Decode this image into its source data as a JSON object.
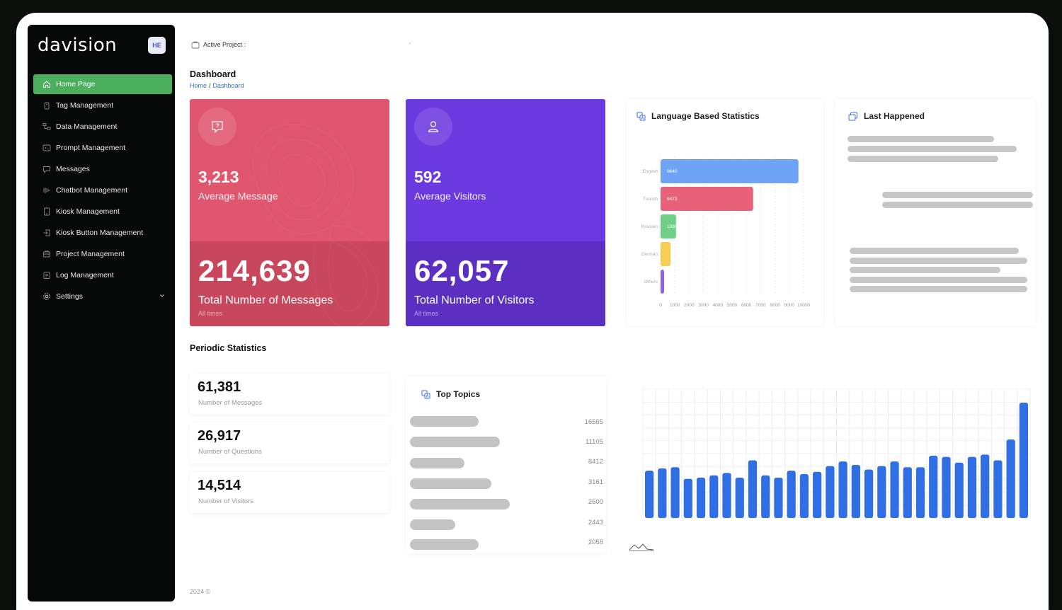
{
  "app": {
    "logo": "davision",
    "avatar": "HE"
  },
  "sidebar": {
    "items": [
      {
        "label": "Home Page",
        "icon": "home-icon",
        "active": true
      },
      {
        "label": "Tag Management",
        "icon": "tag-icon"
      },
      {
        "label": "Data Management",
        "icon": "data-icon"
      },
      {
        "label": "Prompt Management",
        "icon": "prompt-icon"
      },
      {
        "label": "Messages",
        "icon": "messages-icon"
      },
      {
        "label": "Chatbot Management",
        "icon": "chatbot-icon"
      },
      {
        "label": "Kiosk Management",
        "icon": "kiosk-icon"
      },
      {
        "label": "Kiosk Button Management",
        "icon": "kiosk-button-icon"
      },
      {
        "label": "Project Management",
        "icon": "project-icon"
      },
      {
        "label": "Log Management",
        "icon": "log-icon"
      },
      {
        "label": "Settings",
        "icon": "gear-icon",
        "has_chevron": true
      }
    ]
  },
  "header": {
    "active_project_label": "Active Project :",
    "page_title": "Dashboard",
    "breadcrumb": [
      "Home",
      "Dashboard"
    ]
  },
  "stats": {
    "messages": {
      "value": "3,213",
      "label": "Average Message",
      "total": "214,639",
      "total_label": "Total Number of Messages",
      "period": "All times",
      "color": "#e0566e"
    },
    "visitors": {
      "value": "592",
      "label": "Average Visitors",
      "total": "62,057",
      "total_label": "Total Number of Visitors",
      "period": "All times",
      "color": "#6a3ae0"
    }
  },
  "language_stats": {
    "title": "Language Based Statistics"
  },
  "last_happened": {
    "title": "Last Happened"
  },
  "periodic": {
    "title": "Periodic Statistics",
    "items": [
      {
        "value": "61,381",
        "label": "Number of Messages"
      },
      {
        "value": "26,917",
        "label": "Number of Questions"
      },
      {
        "value": "14,514",
        "label": "Number of Visitors"
      }
    ]
  },
  "top_topics": {
    "title": "Top Topics",
    "values": [
      "16565",
      "11105",
      "8412",
      "3161",
      "2600",
      "2443",
      "2058"
    ]
  },
  "footer": {
    "text": "2024 ©"
  },
  "chart_data": [
    {
      "type": "bar",
      "orientation": "horizontal",
      "categories": [
        "English",
        "Turkish",
        "Russian",
        "German",
        "Others"
      ],
      "values": [
        9640,
        6473,
        1080,
        700,
        200
      ],
      "data_labels": [
        "9640",
        "6473",
        "1080",
        "",
        ""
      ],
      "colors": [
        "#6fa3f5",
        "#e8627a",
        "#6fcf86",
        "#f5cd52",
        "#8e63e8"
      ],
      "xticks": [
        "0",
        "1000",
        "2000",
        "3000",
        "4000",
        "5000",
        "6000",
        "7000",
        "8000",
        "9000",
        "10000"
      ],
      "xlim": [
        0,
        10000
      ],
      "grid": true
    },
    {
      "type": "bar",
      "values": [
        0.41,
        0.43,
        0.44,
        0.34,
        0.35,
        0.37,
        0.39,
        0.35,
        0.5,
        0.37,
        0.35,
        0.41,
        0.38,
        0.4,
        0.45,
        0.49,
        0.46,
        0.42,
        0.45,
        0.49,
        0.44,
        0.44,
        0.54,
        0.53,
        0.48,
        0.53,
        0.55,
        0.5,
        0.68,
        1.0
      ],
      "color": "#2f6fe3",
      "grid": true
    }
  ]
}
